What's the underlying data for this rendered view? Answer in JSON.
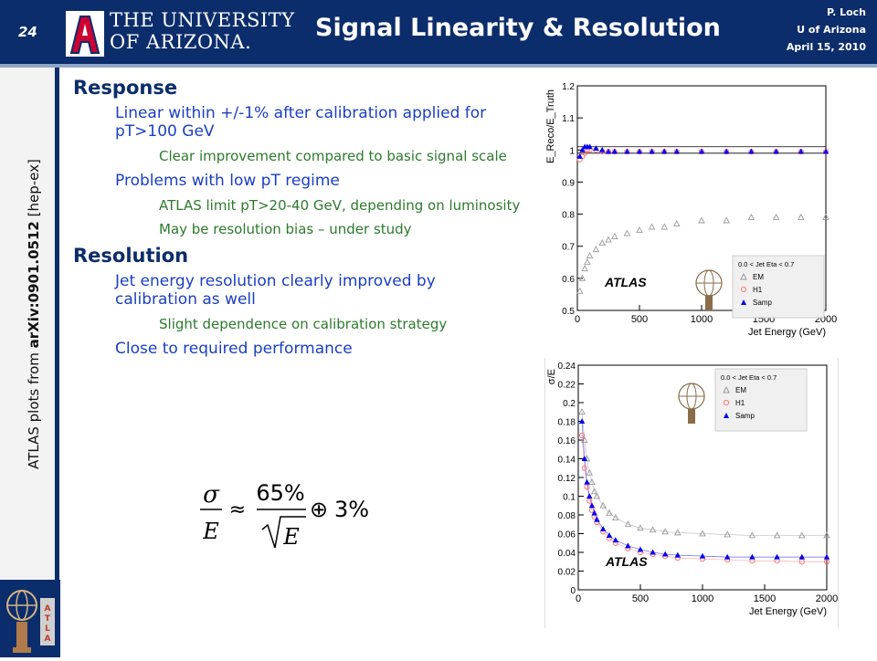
{
  "header": {
    "slide_number": "24",
    "university_line1": "THE UNIVERSITY",
    "university_line2": "OF ARIZONA.",
    "title": "Signal Linearity & Resolution",
    "author": "P. Loch",
    "affiliation": "U of Arizona",
    "date": "April 15, 2010"
  },
  "sidebar": {
    "source_prefix": "ATLAS plots from ",
    "source_ref": "arXiv:0901.0512",
    "source_suffix": " [hep-ex]"
  },
  "content": {
    "response_heading": "Response",
    "response_items": [
      "Linear within +/-1% after calibration applied for pT>100 GeV",
      "Clear improvement compared to basic signal scale",
      "Problems with low pT regime",
      "ATLAS limit pT>20-40 GeV, depending on luminosity",
      "May be resolution bias – under study"
    ],
    "resolution_heading": "Resolution",
    "resolution_items": [
      "Jet energy resolution clearly improved by calibration as well",
      "Slight dependence on calibration strategy",
      "Close to required performance"
    ],
    "formula": {
      "sigma": "σ",
      "E": "E",
      "approx": "≈",
      "numerator": "65%",
      "oplus": "⊕",
      "constant": "3%"
    }
  },
  "colors": {
    "header_bg": "#0c2d6b",
    "level1": "#0c2d6b",
    "level2": "#1a3fc0",
    "level3": "#2d7a2d",
    "em": "#999999",
    "h1": "#ff7777",
    "samp": "#0000ee"
  },
  "chart_data": [
    {
      "type": "scatter",
      "xlabel": "Jet Energy (GeV)",
      "ylabel": "E_Reco/E_Truth",
      "xlim": [
        0,
        2000
      ],
      "ylim": [
        0.5,
        1.2
      ],
      "xticks": [
        "0",
        "500",
        "1000",
        "1500",
        "2000"
      ],
      "yticks": [
        "0.5",
        "0.6",
        "0.7",
        "0.8",
        "0.9",
        "1",
        "1.1",
        "1.2"
      ],
      "annotation": "ATLAS",
      "legend_title": "0.0 < Jet Eta < 0.7",
      "series": [
        {
          "name": "EM",
          "marker": "open-triangle",
          "x": [
            20,
            40,
            60,
            80,
            100,
            150,
            200,
            250,
            300,
            400,
            500,
            600,
            700,
            800,
            1000,
            1200,
            1400,
            1600,
            1800,
            2000
          ],
          "y": [
            0.56,
            0.6,
            0.63,
            0.65,
            0.67,
            0.69,
            0.71,
            0.72,
            0.73,
            0.74,
            0.75,
            0.76,
            0.76,
            0.77,
            0.78,
            0.78,
            0.79,
            0.79,
            0.79,
            0.79
          ]
        },
        {
          "name": "H1",
          "marker": "open-circle",
          "x": [
            20,
            40,
            60,
            80,
            100,
            150,
            200,
            250,
            300,
            400,
            500,
            600,
            700,
            800,
            1000,
            1200,
            1400,
            1600,
            1800,
            2000
          ],
          "y": [
            0.97,
            0.98,
            0.99,
            1.0,
            1.0,
            1.0,
            0.995,
            0.995,
            0.995,
            0.995,
            0.995,
            0.995,
            0.995,
            0.995,
            0.995,
            0.995,
            0.995,
            0.995,
            0.995,
            0.995
          ]
        },
        {
          "name": "Samp",
          "marker": "filled-triangle",
          "x": [
            20,
            40,
            60,
            80,
            100,
            150,
            200,
            250,
            300,
            400,
            500,
            600,
            700,
            800,
            1000,
            1200,
            1400,
            1600,
            1800,
            2000
          ],
          "y": [
            0.98,
            1.0,
            1.01,
            1.01,
            1.01,
            1.005,
            1.0,
            0.995,
            0.995,
            0.995,
            0.995,
            0.995,
            0.995,
            0.995,
            0.995,
            0.995,
            0.995,
            0.995,
            0.995,
            0.995
          ]
        }
      ]
    },
    {
      "type": "scatter",
      "xlabel": "Jet Energy (GeV)",
      "ylabel": "σ/E",
      "xlim": [
        0,
        2000
      ],
      "ylim": [
        0,
        0.24
      ],
      "xticks": [
        "0",
        "500",
        "1000",
        "1500",
        "2000"
      ],
      "yticks": [
        "0",
        "0.02",
        "0.04",
        "0.06",
        "0.08",
        "0.1",
        "0.12",
        "0.14",
        "0.16",
        "0.18",
        "0.2",
        "0.22",
        "0.24"
      ],
      "annotation": "ATLAS",
      "legend_title": "0.0 < Jet Eta < 0.7",
      "series": [
        {
          "name": "EM",
          "marker": "open-triangle",
          "x": [
            30,
            50,
            70,
            90,
            110,
            130,
            150,
            200,
            250,
            300,
            400,
            500,
            600,
            700,
            800,
            1000,
            1200,
            1400,
            1600,
            1800,
            2000
          ],
          "y": [
            0.19,
            0.16,
            0.14,
            0.125,
            0.115,
            0.105,
            0.1,
            0.09,
            0.082,
            0.077,
            0.07,
            0.066,
            0.064,
            0.062,
            0.061,
            0.06,
            0.059,
            0.058,
            0.058,
            0.058,
            0.058
          ]
        },
        {
          "name": "H1",
          "marker": "open-circle",
          "x": [
            30,
            50,
            70,
            90,
            110,
            130,
            150,
            200,
            250,
            300,
            400,
            500,
            600,
            700,
            800,
            1000,
            1200,
            1400,
            1600,
            1800,
            2000
          ],
          "y": [
            0.165,
            0.13,
            0.11,
            0.095,
            0.085,
            0.078,
            0.072,
            0.062,
            0.055,
            0.05,
            0.044,
            0.04,
            0.038,
            0.036,
            0.034,
            0.033,
            0.032,
            0.031,
            0.031,
            0.03,
            0.03
          ]
        },
        {
          "name": "Samp",
          "marker": "filled-triangle",
          "x": [
            30,
            50,
            70,
            90,
            110,
            130,
            150,
            200,
            250,
            300,
            400,
            500,
            600,
            700,
            800,
            1000,
            1200,
            1400,
            1600,
            1800,
            2000
          ],
          "y": [
            0.18,
            0.14,
            0.115,
            0.1,
            0.09,
            0.082,
            0.075,
            0.065,
            0.058,
            0.053,
            0.047,
            0.043,
            0.04,
            0.038,
            0.037,
            0.036,
            0.035,
            0.035,
            0.035,
            0.035,
            0.035
          ]
        }
      ]
    }
  ]
}
